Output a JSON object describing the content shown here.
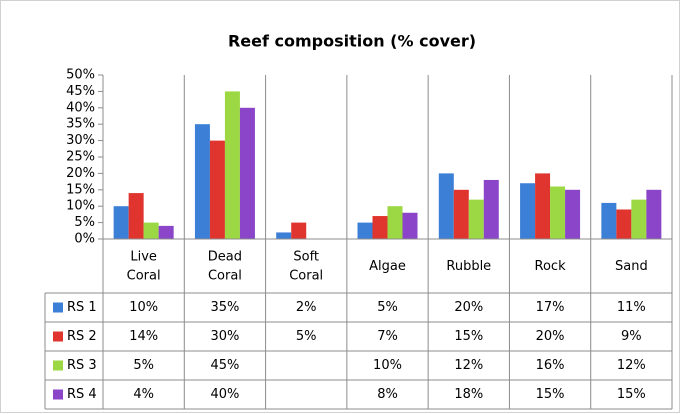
{
  "chart_data": {
    "type": "bar",
    "title": "Reef composition (% cover)",
    "categories": [
      "Live Coral",
      "Dead Coral",
      "Soft Coral",
      "Algae",
      "Rubble",
      "Rock",
      "Sand"
    ],
    "series": [
      {
        "name": "RS 1",
        "color": "#3c7fd6",
        "values": [
          10,
          35,
          2,
          5,
          20,
          17,
          11
        ],
        "value_labels": [
          "10%",
          "35%",
          "2%",
          "5%",
          "20%",
          "17%",
          "11%"
        ]
      },
      {
        "name": "RS 2",
        "color": "#e0352e",
        "values": [
          14,
          30,
          5,
          7,
          15,
          20,
          9
        ],
        "value_labels": [
          "14%",
          "30%",
          "5%",
          "7%",
          "15%",
          "20%",
          "9%"
        ]
      },
      {
        "name": "RS 3",
        "color": "#9bd843",
        "values": [
          5,
          45,
          null,
          10,
          12,
          16,
          12
        ],
        "value_labels": [
          "5%",
          "45%",
          null,
          "10%",
          "12%",
          "16%",
          "12%"
        ]
      },
      {
        "name": "RS 4",
        "color": "#8a45c8",
        "values": [
          4,
          40,
          null,
          8,
          18,
          15,
          15
        ],
        "value_labels": [
          "4%",
          "40%",
          null,
          "8%",
          "18%",
          "15%",
          "15%"
        ]
      }
    ],
    "ylim": [
      0,
      50
    ],
    "yticks": [
      {
        "value": 0,
        "label": "0%"
      },
      {
        "value": 5,
        "label": "5%"
      },
      {
        "value": 10,
        "label": "10%"
      },
      {
        "value": 15,
        "label": "15%"
      },
      {
        "value": 20,
        "label": "20%"
      },
      {
        "value": 25,
        "label": "25%"
      },
      {
        "value": 30,
        "label": "30%"
      },
      {
        "value": 35,
        "label": "35%"
      },
      {
        "value": 40,
        "label": "40%"
      },
      {
        "value": 45,
        "label": "45%"
      },
      {
        "value": 50,
        "label": "50%"
      }
    ],
    "grid": false,
    "data_table": true
  }
}
